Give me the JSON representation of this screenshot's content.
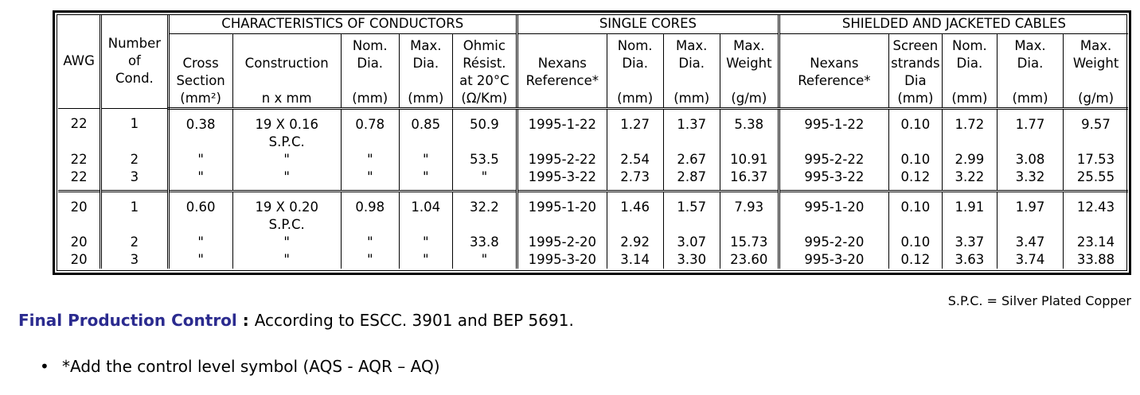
{
  "table": {
    "group_headers": {
      "conductors": "CHARACTERISTICS OF CONDUCTORS",
      "single": "SINGLE CORES",
      "shielded": "SHIELDED AND JACKETED CABLES"
    },
    "columns": {
      "awg": "AWG",
      "number": [
        "Number",
        "of",
        "Cond."
      ],
      "cross": [
        "Cross",
        "Section",
        "(mm²)"
      ],
      "construction": [
        "Construction",
        "n x mm"
      ],
      "nom_dia": [
        "Nom.",
        "Dia.",
        "(mm)"
      ],
      "max_dia": [
        "Max.",
        "Dia.",
        "(mm)"
      ],
      "ohmic": [
        "Ohmic",
        "Résist.",
        "at 20°C",
        "(Ω/Km)"
      ],
      "nexans_single": [
        "Nexans",
        "Reference*"
      ],
      "sc_nom": [
        "Nom.",
        "Dia.",
        "(mm)"
      ],
      "sc_max": [
        "Max.",
        "Dia.",
        "(mm)"
      ],
      "sc_weight": [
        "Max.",
        "Weight",
        "(g/m)"
      ],
      "nexans_shield": [
        "Nexans",
        "Reference*"
      ],
      "screen": [
        "Screen",
        "strands",
        "Dia",
        "(mm)"
      ],
      "sh_nom": [
        "Nom.",
        "Dia.",
        "(mm)"
      ],
      "sh_max": [
        "Max.",
        "Dia.",
        "(mm)"
      ],
      "sh_weight": [
        "Max.",
        "Weight",
        "(g/m)"
      ]
    },
    "rows": [
      {
        "awg": "22",
        "n": "1",
        "cross": "0.38",
        "cons": "19 X 0.16",
        "cons2": "S.P.C.",
        "nom": "0.78",
        "max": "0.85",
        "ohm": "50.9",
        "ref": "1995-1-22",
        "snom": "1.27",
        "smax": "1.37",
        "swt": "5.38",
        "href": "995-1-22",
        "scr": "0.10",
        "hnom": "1.72",
        "hmax": "1.77",
        "hwt": "9.57"
      },
      {
        "awg": "22",
        "n": "2",
        "cross": "\"",
        "cons": "\"",
        "cons2": "",
        "nom": "\"",
        "max": "\"",
        "ohm": "53.5",
        "ref": "1995-2-22",
        "snom": "2.54",
        "smax": "2.67",
        "swt": "10.91",
        "href": "995-2-22",
        "scr": "0.10",
        "hnom": "2.99",
        "hmax": "3.08",
        "hwt": "17.53"
      },
      {
        "awg": "22",
        "n": "3",
        "cross": "\"",
        "cons": "\"",
        "cons2": "",
        "nom": "\"",
        "max": "\"",
        "ohm": "\"",
        "ref": "1995-3-22",
        "snom": "2.73",
        "smax": "2.87",
        "swt": "16.37",
        "href": "995-3-22",
        "scr": "0.12",
        "hnom": "3.22",
        "hmax": "3.32",
        "hwt": "25.55"
      },
      {
        "awg": "20",
        "n": "1",
        "cross": "0.60",
        "cons": "19 X 0.20",
        "cons2": "S.P.C.",
        "nom": "0.98",
        "max": "1.04",
        "ohm": "32.2",
        "ref": "1995-1-20",
        "snom": "1.46",
        "smax": "1.57",
        "swt": "7.93",
        "href": "995-1-20",
        "scr": "0.10",
        "hnom": "1.91",
        "hmax": "1.97",
        "hwt": "12.43"
      },
      {
        "awg": "20",
        "n": "2",
        "cross": "\"",
        "cons": "\"",
        "cons2": "",
        "nom": "\"",
        "max": "\"",
        "ohm": "33.8",
        "ref": "1995-2-20",
        "snom": "2.92",
        "smax": "3.07",
        "swt": "15.73",
        "href": "995-2-20",
        "scr": "0.10",
        "hnom": "3.37",
        "hmax": "3.47",
        "hwt": "23.14"
      },
      {
        "awg": "20",
        "n": "3",
        "cross": "\"",
        "cons": "\"",
        "cons2": "",
        "nom": "\"",
        "max": "\"",
        "ohm": "\"",
        "ref": "1995-3-20",
        "snom": "3.14",
        "smax": "3.30",
        "swt": "23.60",
        "href": "995-3-20",
        "scr": "0.12",
        "hnom": "3.63",
        "hmax": "3.74",
        "hwt": "33.88"
      }
    ]
  },
  "note": "S.P.C. = Silver Plated Copper",
  "final_control": {
    "label": "Final Production Control",
    "sep": " : ",
    "text": "According to ESCC. 3901 and BEP 5691."
  },
  "bullet": {
    "symbol": "•",
    "text": "*Add the control level symbol (AQS - AQR – AQ)"
  }
}
